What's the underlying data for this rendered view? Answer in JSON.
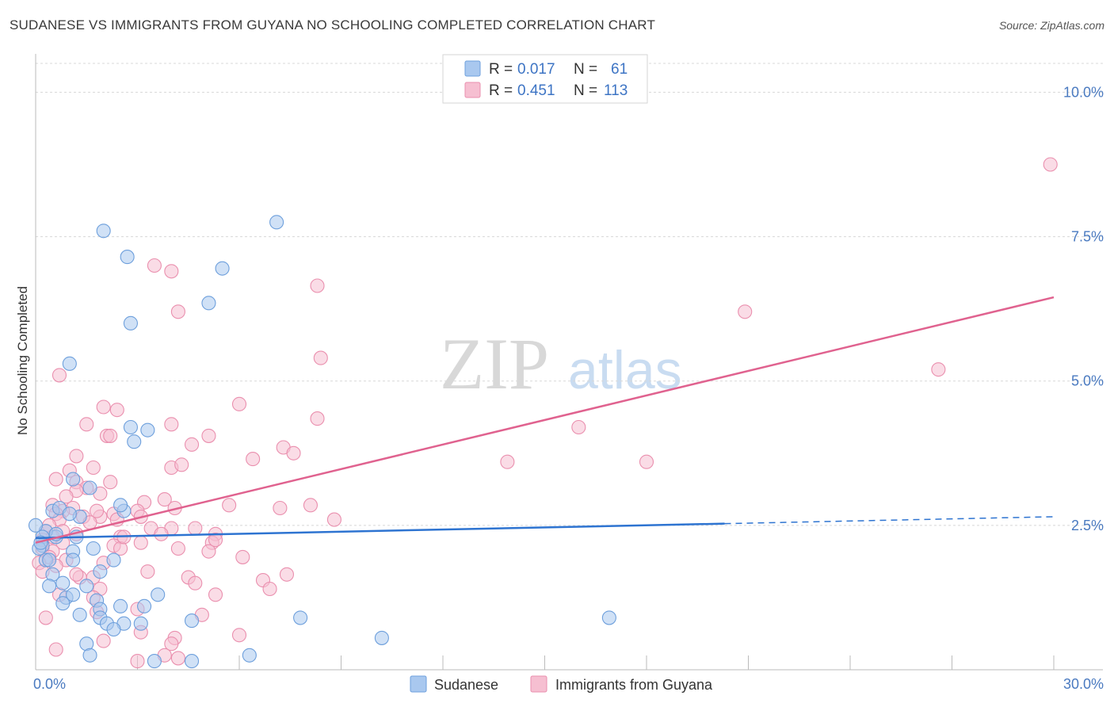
{
  "title": "SUDANESE VS IMMIGRANTS FROM GUYANA NO SCHOOLING COMPLETED CORRELATION CHART",
  "source": "Source: ZipAtlas.com",
  "watermark": {
    "zip": "ZIP",
    "atlas": "atlas"
  },
  "colors": {
    "blue_fill": "#a9c8ef",
    "blue_stroke": "#6d9fdc",
    "blue_line": "#2e74d1",
    "pink_fill": "#f6bfd1",
    "pink_stroke": "#ea8fae",
    "pink_line": "#e0628f",
    "grid": "#d8d8d8",
    "tick_text": "#4a7ac0"
  },
  "legend": {
    "rows": [
      {
        "r_label": "R =",
        "r_value": "0.017",
        "n_label": "N =",
        "n_value": "61"
      },
      {
        "r_label": "R =",
        "r_value": "0.451",
        "n_label": "N =",
        "n_value": "113"
      }
    ]
  },
  "bottom_legend": [
    "Sudanese",
    "Immigrants from Guyana"
  ],
  "chart_data": {
    "type": "scatter",
    "title": "SUDANESE VS IMMIGRANTS FROM GUYANA NO SCHOOLING COMPLETED CORRELATION CHART",
    "xlabel": "",
    "ylabel": "No Schooling Completed",
    "xlim": [
      0,
      30
    ],
    "ylim": [
      0,
      10.5
    ],
    "x_tick_labels": [
      "0.0%",
      "30.0%"
    ],
    "y_ticks": [
      2.5,
      5.0,
      7.5,
      10.0
    ],
    "y_tick_labels": [
      "2.5%",
      "5.0%",
      "7.5%",
      "10.0%"
    ],
    "series": [
      {
        "name": "Sudanese",
        "R": 0.017,
        "N": 61,
        "trend": {
          "x0": 0,
          "y0": 2.28,
          "x1": 20.3,
          "y1": 2.53,
          "dash_to_x": 30,
          "dash_to_y": 2.65
        },
        "points": [
          [
            2.0,
            7.6
          ],
          [
            2.7,
            7.15
          ],
          [
            7.1,
            7.75
          ],
          [
            5.5,
            6.95
          ],
          [
            5.1,
            6.35
          ],
          [
            2.8,
            6.0
          ],
          [
            1.0,
            5.3
          ],
          [
            2.8,
            4.2
          ],
          [
            3.3,
            4.15
          ],
          [
            2.9,
            3.95
          ],
          [
            1.1,
            3.3
          ],
          [
            1.6,
            3.15
          ],
          [
            2.6,
            2.75
          ],
          [
            1.3,
            2.65
          ],
          [
            0.5,
            2.75
          ],
          [
            0.6,
            2.3
          ],
          [
            1.2,
            2.3
          ],
          [
            0.3,
            2.4
          ],
          [
            0.2,
            2.3
          ],
          [
            0.2,
            2.15
          ],
          [
            0.3,
            1.9
          ],
          [
            1.1,
            2.05
          ],
          [
            1.7,
            2.1
          ],
          [
            1.1,
            1.9
          ],
          [
            2.3,
            1.9
          ],
          [
            0.1,
            2.1
          ],
          [
            0.4,
            1.9
          ],
          [
            1.9,
            1.7
          ],
          [
            0.5,
            1.65
          ],
          [
            0.8,
            1.5
          ],
          [
            0.4,
            1.45
          ],
          [
            1.5,
            1.45
          ],
          [
            0.9,
            1.25
          ],
          [
            1.1,
            1.3
          ],
          [
            3.6,
            1.3
          ],
          [
            0.8,
            1.15
          ],
          [
            1.8,
            1.2
          ],
          [
            2.5,
            1.1
          ],
          [
            1.9,
            1.05
          ],
          [
            3.2,
            1.1
          ],
          [
            1.3,
            0.95
          ],
          [
            1.9,
            0.9
          ],
          [
            2.1,
            0.8
          ],
          [
            2.6,
            0.8
          ],
          [
            3.1,
            0.8
          ],
          [
            2.3,
            0.7
          ],
          [
            4.6,
            0.85
          ],
          [
            7.8,
            0.9
          ],
          [
            16.9,
            0.9
          ],
          [
            1.5,
            0.45
          ],
          [
            10.2,
            0.55
          ],
          [
            1.6,
            0.25
          ],
          [
            3.5,
            0.15
          ],
          [
            4.6,
            0.15
          ],
          [
            6.3,
            0.25
          ],
          [
            0.0,
            2.5
          ],
          [
            0.15,
            2.2
          ],
          [
            2.5,
            2.85
          ],
          [
            0.7,
            2.8
          ],
          [
            1.0,
            2.7
          ],
          [
            0.6,
            2.35
          ]
        ]
      },
      {
        "name": "Immigrants from Guyana",
        "R": 0.451,
        "N": 113,
        "trend": {
          "x0": 0,
          "y0": 2.2,
          "x1": 30,
          "y1": 6.45
        },
        "points": [
          [
            29.9,
            8.75
          ],
          [
            3.5,
            7.0
          ],
          [
            4.0,
            6.9
          ],
          [
            8.3,
            6.65
          ],
          [
            4.2,
            6.2
          ],
          [
            20.9,
            6.2
          ],
          [
            8.4,
            5.4
          ],
          [
            26.6,
            5.2
          ],
          [
            0.7,
            5.1
          ],
          [
            6.0,
            4.6
          ],
          [
            2.0,
            4.55
          ],
          [
            2.4,
            4.5
          ],
          [
            1.5,
            4.25
          ],
          [
            4.0,
            4.25
          ],
          [
            8.3,
            4.35
          ],
          [
            16.0,
            4.2
          ],
          [
            2.1,
            4.05
          ],
          [
            2.2,
            4.05
          ],
          [
            4.6,
            3.9
          ],
          [
            5.1,
            4.05
          ],
          [
            7.3,
            3.85
          ],
          [
            7.6,
            3.75
          ],
          [
            1.2,
            3.7
          ],
          [
            6.4,
            3.65
          ],
          [
            13.9,
            3.6
          ],
          [
            18.0,
            3.6
          ],
          [
            4.0,
            3.5
          ],
          [
            4.3,
            3.55
          ],
          [
            1.7,
            3.5
          ],
          [
            1.0,
            3.45
          ],
          [
            0.6,
            3.3
          ],
          [
            1.2,
            3.25
          ],
          [
            1.5,
            3.15
          ],
          [
            2.2,
            3.25
          ],
          [
            1.2,
            3.1
          ],
          [
            1.9,
            3.05
          ],
          [
            0.9,
            3.0
          ],
          [
            3.8,
            2.95
          ],
          [
            3.2,
            2.9
          ],
          [
            5.7,
            2.85
          ],
          [
            7.2,
            2.8
          ],
          [
            8.1,
            2.85
          ],
          [
            4.1,
            2.8
          ],
          [
            0.5,
            2.85
          ],
          [
            1.1,
            2.8
          ],
          [
            0.8,
            2.75
          ],
          [
            2.3,
            2.7
          ],
          [
            3.0,
            2.75
          ],
          [
            0.6,
            2.7
          ],
          [
            1.4,
            2.65
          ],
          [
            1.9,
            2.65
          ],
          [
            2.4,
            2.6
          ],
          [
            3.1,
            2.65
          ],
          [
            0.7,
            2.6
          ],
          [
            8.8,
            2.6
          ],
          [
            1.6,
            2.55
          ],
          [
            0.4,
            2.5
          ],
          [
            3.4,
            2.45
          ],
          [
            4.0,
            2.45
          ],
          [
            4.7,
            2.45
          ],
          [
            0.3,
            2.4
          ],
          [
            0.8,
            2.4
          ],
          [
            1.2,
            2.35
          ],
          [
            3.7,
            2.35
          ],
          [
            5.3,
            2.35
          ],
          [
            0.5,
            2.3
          ],
          [
            2.5,
            2.3
          ],
          [
            5.2,
            2.2
          ],
          [
            0.8,
            2.2
          ],
          [
            3.1,
            2.2
          ],
          [
            2.3,
            2.15
          ],
          [
            2.5,
            2.1
          ],
          [
            4.2,
            2.1
          ],
          [
            5.1,
            2.05
          ],
          [
            0.2,
            2.1
          ],
          [
            0.5,
            2.05
          ],
          [
            6.1,
            1.95
          ],
          [
            0.4,
            1.95
          ],
          [
            0.1,
            1.85
          ],
          [
            0.9,
            1.9
          ],
          [
            2.0,
            1.85
          ],
          [
            0.2,
            1.7
          ],
          [
            3.3,
            1.7
          ],
          [
            6.7,
            1.55
          ],
          [
            7.4,
            1.65
          ],
          [
            1.3,
            1.6
          ],
          [
            4.5,
            1.6
          ],
          [
            4.7,
            1.5
          ],
          [
            1.7,
            1.6
          ],
          [
            1.9,
            1.4
          ],
          [
            6.9,
            1.4
          ],
          [
            5.3,
            1.3
          ],
          [
            1.7,
            1.25
          ],
          [
            1.8,
            1.0
          ],
          [
            3.0,
            1.05
          ],
          [
            4.9,
            0.95
          ],
          [
            0.3,
            0.9
          ],
          [
            3.1,
            0.65
          ],
          [
            6.0,
            0.6
          ],
          [
            4.1,
            0.55
          ],
          [
            2.0,
            0.5
          ],
          [
            4.0,
            0.45
          ],
          [
            3.8,
            0.25
          ],
          [
            3.0,
            0.15
          ],
          [
            4.2,
            0.2
          ],
          [
            0.6,
            0.35
          ],
          [
            0.6,
            1.8
          ],
          [
            5.3,
            2.25
          ],
          [
            0.7,
            1.3
          ],
          [
            1.8,
            2.75
          ],
          [
            2.6,
            2.3
          ],
          [
            1.2,
            1.65
          ],
          [
            0.2,
            2.25
          ]
        ]
      }
    ]
  }
}
